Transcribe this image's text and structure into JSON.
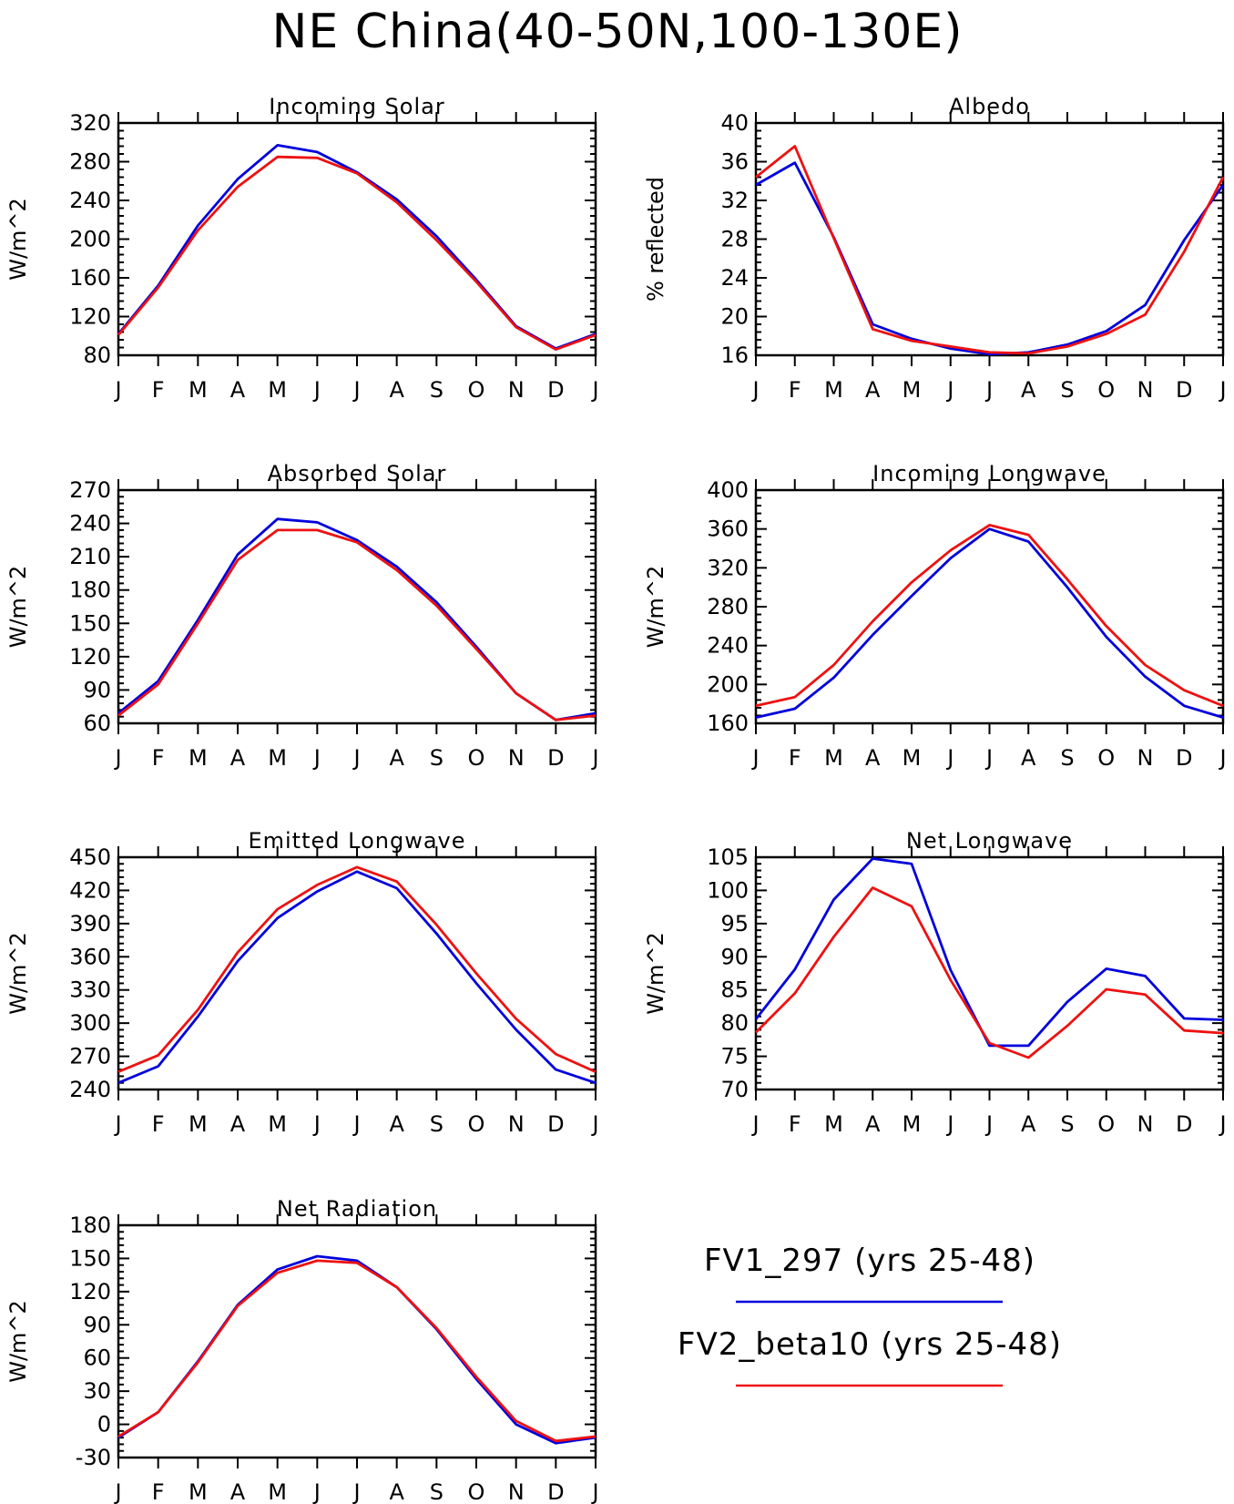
{
  "title": "NE China(40-50N,100-130E)",
  "legend": [
    {
      "name": "FV1_297 (yrs 25-48)",
      "color": "#0000dd"
    },
    {
      "name": "FV2_beta10 (yrs 25-48)",
      "color": "#ee1111"
    }
  ],
  "chart_data": [
    {
      "type": "line",
      "title": "Incoming Solar",
      "ylabel": "W/m^2",
      "categories": [
        "J",
        "F",
        "M",
        "A",
        "M",
        "J",
        "J",
        "A",
        "S",
        "O",
        "N",
        "D",
        "J"
      ],
      "ylim": [
        80,
        320
      ],
      "yticks": [
        80,
        120,
        160,
        200,
        240,
        280,
        320
      ],
      "series": [
        {
          "name": "FV1_297 (yrs 25-48)",
          "values": [
            102,
            152,
            214,
            262,
            297,
            290,
            269,
            241,
            203,
            158,
            110,
            87,
            102
          ]
        },
        {
          "name": "FV2_beta10 (yrs 25-48)",
          "values": [
            101,
            150,
            209,
            254,
            285,
            284,
            268,
            238,
            199,
            156,
            109,
            86,
            101
          ]
        }
      ]
    },
    {
      "type": "line",
      "title": "Albedo",
      "ylabel": "% reflected",
      "categories": [
        "J",
        "F",
        "M",
        "A",
        "M",
        "J",
        "J",
        "A",
        "S",
        "O",
        "N",
        "D",
        "J"
      ],
      "ylim": [
        16,
        40
      ],
      "yticks": [
        16,
        20,
        24,
        28,
        32,
        36,
        40
      ],
      "series": [
        {
          "name": "FV1_297 (yrs 25-48)",
          "values": [
            33.6,
            35.9,
            28.2,
            19.2,
            17.7,
            16.7,
            16.1,
            16.3,
            17.1,
            18.5,
            21.2,
            27.9,
            33.6
          ]
        },
        {
          "name": "FV2_beta10 (yrs 25-48)",
          "values": [
            34.4,
            37.6,
            28.1,
            18.7,
            17.5,
            16.9,
            16.3,
            16.2,
            16.9,
            18.2,
            20.2,
            26.7,
            34.4
          ]
        }
      ]
    },
    {
      "type": "line",
      "title": "Absorbed Solar",
      "ylabel": "W/m^2",
      "categories": [
        "J",
        "F",
        "M",
        "A",
        "M",
        "J",
        "J",
        "A",
        "S",
        "O",
        "N",
        "D",
        "J"
      ],
      "ylim": [
        60,
        270
      ],
      "yticks": [
        60,
        90,
        120,
        150,
        180,
        210,
        240,
        270
      ],
      "series": [
        {
          "name": "FV1_297 (yrs 25-48)",
          "values": [
            69,
            98,
            153,
            212,
            244,
            241,
            225,
            201,
            169,
            129,
            87,
            63,
            69
          ]
        },
        {
          "name": "FV2_beta10 (yrs 25-48)",
          "values": [
            67,
            95,
            150,
            207,
            234,
            234,
            223,
            198,
            166,
            127,
            87,
            63,
            67
          ]
        }
      ]
    },
    {
      "type": "line",
      "title": "Incoming Longwave",
      "ylabel": "W/m^2",
      "categories": [
        "J",
        "F",
        "M",
        "A",
        "M",
        "J",
        "J",
        "A",
        "S",
        "O",
        "N",
        "D",
        "J"
      ],
      "ylim": [
        160,
        400
      ],
      "yticks": [
        160,
        200,
        240,
        280,
        320,
        360,
        400
      ],
      "series": [
        {
          "name": "FV1_297 (yrs 25-48)",
          "values": [
            166,
            175,
            207,
            251,
            291,
            330,
            360,
            347,
            300,
            249,
            208,
            178,
            166
          ]
        },
        {
          "name": "FV2_beta10 (yrs 25-48)",
          "values": [
            178,
            187,
            220,
            265,
            305,
            338,
            364,
            354,
            308,
            260,
            220,
            194,
            178
          ]
        }
      ]
    },
    {
      "type": "line",
      "title": "Emitted Longwave",
      "ylabel": "W/m^2",
      "categories": [
        "J",
        "F",
        "M",
        "A",
        "M",
        "J",
        "J",
        "A",
        "S",
        "O",
        "N",
        "D",
        "J"
      ],
      "ylim": [
        240,
        450
      ],
      "yticks": [
        240,
        270,
        300,
        330,
        360,
        390,
        420,
        450
      ],
      "series": [
        {
          "name": "FV1_297 (yrs 25-48)",
          "values": [
            246,
            261,
            306,
            356,
            395,
            419,
            437,
            422,
            381,
            336,
            294,
            258,
            246
          ]
        },
        {
          "name": "FV2_beta10 (yrs 25-48)",
          "values": [
            256,
            271,
            312,
            364,
            403,
            425,
            441,
            428,
            389,
            345,
            304,
            272,
            256
          ]
        }
      ]
    },
    {
      "type": "line",
      "title": "Net Longwave",
      "ylabel": "W/m^2",
      "categories": [
        "J",
        "F",
        "M",
        "A",
        "M",
        "J",
        "J",
        "A",
        "S",
        "O",
        "N",
        "D",
        "J"
      ],
      "ylim": [
        70,
        105
      ],
      "yticks": [
        70,
        75,
        80,
        85,
        90,
        95,
        100,
        105
      ],
      "series": [
        {
          "name": "FV1_297 (yrs 25-48)",
          "values": [
            80.6,
            88.1,
            98.6,
            104.8,
            104.0,
            88.0,
            76.6,
            76.6,
            83.2,
            88.2,
            87.1,
            80.7,
            80.5
          ]
        },
        {
          "name": "FV2_beta10 (yrs 25-48)",
          "values": [
            78.6,
            84.5,
            93.0,
            100.4,
            97.6,
            86.5,
            77.0,
            74.8,
            79.6,
            85.1,
            84.3,
            78.9,
            78.5
          ]
        }
      ]
    },
    {
      "type": "line",
      "title": "Net Radiation",
      "ylabel": "W/m^2",
      "categories": [
        "J",
        "F",
        "M",
        "A",
        "M",
        "J",
        "J",
        "A",
        "S",
        "O",
        "N",
        "D",
        "J"
      ],
      "ylim": [
        -30,
        180
      ],
      "yticks": [
        -30,
        0,
        30,
        60,
        90,
        120,
        150,
        180
      ],
      "series": [
        {
          "name": "FV1_297 (yrs 25-48)",
          "values": [
            -12,
            11,
            57,
            108,
            140,
            152,
            148,
            124,
            86,
            41,
            0,
            -17,
            -12
          ]
        },
        {
          "name": "FV2_beta10 (yrs 25-48)",
          "values": [
            -11,
            11,
            56,
            107,
            137,
            148,
            146,
            124,
            87,
            43,
            3,
            -15,
            -11
          ]
        }
      ]
    }
  ]
}
